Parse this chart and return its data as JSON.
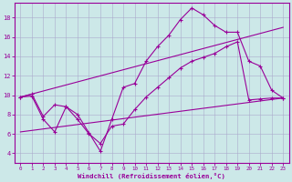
{
  "xlabel": "Windchill (Refroidissement éolien,°C)",
  "bg_color": "#cce8e8",
  "line_color": "#990099",
  "grid_color": "#aaaacc",
  "xlim": [
    -0.5,
    23.5
  ],
  "ylim": [
    3,
    19.5
  ],
  "yticks": [
    4,
    6,
    8,
    10,
    12,
    14,
    16,
    18
  ],
  "xticks": [
    0,
    1,
    2,
    3,
    4,
    5,
    6,
    7,
    8,
    9,
    10,
    11,
    12,
    13,
    14,
    15,
    16,
    17,
    18,
    19,
    20,
    21,
    22,
    23
  ],
  "line1_x": [
    0,
    1,
    2,
    3,
    4,
    5,
    6,
    7,
    8,
    9,
    10,
    11,
    12,
    13,
    14,
    15,
    16,
    17,
    18,
    19,
    20,
    21,
    22,
    23
  ],
  "line1_y": [
    9.8,
    10.1,
    7.8,
    9.0,
    8.8,
    8.0,
    6.1,
    4.2,
    7.5,
    10.8,
    11.2,
    13.5,
    15.0,
    16.2,
    17.8,
    19.0,
    18.3,
    17.2,
    16.5,
    16.5,
    13.5,
    13.0,
    10.5,
    9.7
  ],
  "line2_x": [
    0,
    1,
    2,
    3,
    4,
    5,
    6,
    7,
    8,
    9,
    10,
    11,
    12,
    13,
    14,
    15,
    16,
    17,
    18,
    19,
    20,
    21,
    22,
    23
  ],
  "line2_y": [
    9.8,
    9.9,
    7.5,
    6.2,
    8.8,
    7.5,
    6.0,
    5.0,
    6.8,
    7.0,
    8.5,
    9.8,
    10.8,
    11.8,
    12.8,
    13.5,
    13.9,
    14.3,
    15.0,
    15.5,
    9.5,
    9.6,
    9.7,
    9.7
  ],
  "line3_x": [
    0,
    23
  ],
  "line3_y": [
    9.8,
    17.0
  ],
  "line4_x": [
    0,
    23
  ],
  "line4_y": [
    6.2,
    9.7
  ]
}
